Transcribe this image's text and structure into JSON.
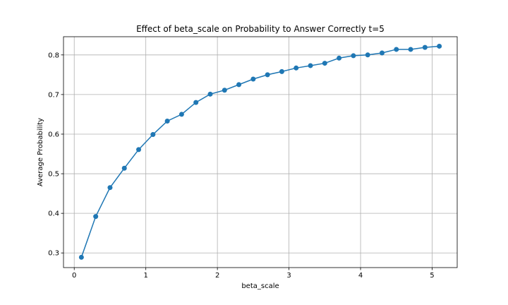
{
  "chart_data": {
    "type": "line",
    "title": "Effect of beta_scale on Probability to Answer Correctly t=5",
    "xlabel": "beta_scale",
    "ylabel": "Average Probability",
    "xlim": [
      -0.15,
      5.35
    ],
    "ylim": [
      0.263,
      0.846
    ],
    "xticks": [
      0,
      1,
      2,
      3,
      4,
      5
    ],
    "yticks": [
      0.3,
      0.4,
      0.5,
      0.6,
      0.7,
      0.8
    ],
    "grid": true,
    "series": [
      {
        "color": "#1f77b4",
        "marker": "circle",
        "x": [
          0.1,
          0.3,
          0.5,
          0.7,
          0.9,
          1.1,
          1.3,
          1.5,
          1.7,
          1.9,
          2.1,
          2.3,
          2.5,
          2.7,
          2.9,
          3.1,
          3.3,
          3.5,
          3.7,
          3.9,
          4.1,
          4.3,
          4.5,
          4.7,
          4.9,
          5.1
        ],
        "y": [
          0.289,
          0.392,
          0.465,
          0.514,
          0.561,
          0.599,
          0.633,
          0.65,
          0.68,
          0.701,
          0.711,
          0.725,
          0.739,
          0.75,
          0.758,
          0.767,
          0.773,
          0.779,
          0.792,
          0.798,
          0.8,
          0.805,
          0.814,
          0.814,
          0.819,
          0.822
        ]
      }
    ]
  }
}
